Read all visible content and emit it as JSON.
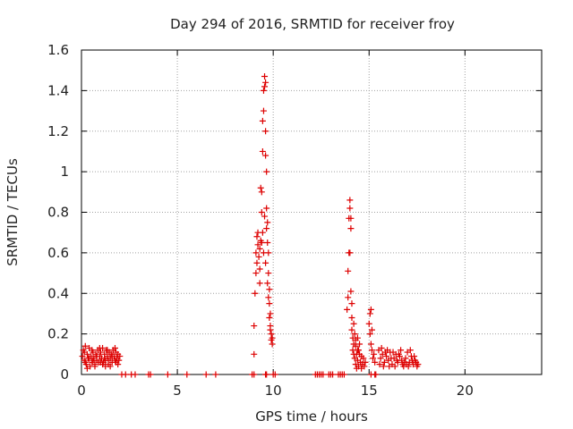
{
  "chart_data": {
    "type": "scatter",
    "title": "Day 294 of 2016, SRMTID for receiver froy",
    "xlabel": "GPS time / hours",
    "ylabel": "SRMTID / TECUs",
    "xlim": [
      0,
      24
    ],
    "ylim": [
      0,
      1.6
    ],
    "x_ticks": [
      0,
      5,
      10,
      15,
      20
    ],
    "x_tick_labels": [
      "0",
      "5",
      "10",
      "15",
      "20"
    ],
    "y_ticks": [
      0,
      0.2,
      0.4,
      0.6,
      0.8,
      1.0,
      1.2,
      1.4,
      1.6
    ],
    "y_tick_labels": [
      "0",
      "0.2",
      "0.4",
      "0.6",
      "0.8",
      "1",
      "1.2",
      "1.4",
      "1.6"
    ],
    "grid": true,
    "marker": "+",
    "color": "#dd0000",
    "series": [
      {
        "name": "SRMTID",
        "points": [
          [
            0.05,
            0.09
          ],
          [
            0.1,
            0.12
          ],
          [
            0.15,
            0.07
          ],
          [
            0.2,
            0.14
          ],
          [
            0.25,
            0.05
          ],
          [
            0.3,
            0.1
          ],
          [
            0.35,
            0.08
          ],
          [
            0.4,
            0.13
          ],
          [
            0.45,
            0.04
          ],
          [
            0.5,
            0.09
          ],
          [
            0.55,
            0.06
          ],
          [
            0.6,
            0.11
          ],
          [
            0.65,
            0.08
          ],
          [
            0.7,
            0.05
          ],
          [
            0.75,
            0.1
          ],
          [
            0.8,
            0.07
          ],
          [
            0.85,
            0.12
          ],
          [
            0.9,
            0.06
          ],
          [
            0.95,
            0.09
          ],
          [
            1.0,
            0.11
          ],
          [
            1.05,
            0.08
          ],
          [
            1.1,
            0.13
          ],
          [
            1.15,
            0.06
          ],
          [
            1.2,
            0.1
          ],
          [
            1.25,
            0.07
          ],
          [
            1.3,
            0.12
          ],
          [
            1.35,
            0.09
          ],
          [
            1.4,
            0.05
          ],
          [
            1.45,
            0.11
          ],
          [
            1.5,
            0.08
          ],
          [
            1.55,
            0.1
          ],
          [
            1.6,
            0.06
          ],
          [
            1.65,
            0.12
          ],
          [
            1.7,
            0.09
          ],
          [
            1.75,
            0.07
          ],
          [
            1.8,
            0.11
          ],
          [
            1.85,
            0.08
          ],
          [
            1.9,
            0.1
          ],
          [
            1.95,
            0.07
          ],
          [
            2.0,
            0.09
          ],
          [
            0.2,
            0.06
          ],
          [
            0.4,
            0.08
          ],
          [
            0.6,
            0.07
          ],
          [
            0.8,
            0.09
          ],
          [
            1.0,
            0.06
          ],
          [
            1.2,
            0.08
          ],
          [
            1.4,
            0.07
          ],
          [
            1.6,
            0.09
          ],
          [
            1.8,
            0.06
          ],
          [
            0.3,
            0.03
          ],
          [
            0.7,
            0.04
          ],
          [
            1.1,
            0.05
          ],
          [
            1.5,
            0.04
          ],
          [
            1.9,
            0.05
          ],
          [
            0.15,
            0.11
          ],
          [
            0.55,
            0.12
          ],
          [
            0.95,
            0.13
          ],
          [
            1.35,
            0.12
          ],
          [
            1.75,
            0.13
          ],
          [
            1.25,
            0.04
          ],
          [
            2.1,
            0.0
          ],
          [
            2.3,
            0.0
          ],
          [
            2.6,
            0.0
          ],
          [
            2.8,
            0.0
          ],
          [
            3.5,
            0.0
          ],
          [
            3.6,
            0.0
          ],
          [
            4.5,
            0.0
          ],
          [
            5.5,
            0.0
          ],
          [
            6.5,
            0.0
          ],
          [
            7.0,
            0.0
          ],
          [
            8.9,
            0.0
          ],
          [
            9.0,
            0.0
          ],
          [
            9.6,
            0.0
          ],
          [
            9.65,
            0.0
          ],
          [
            10.0,
            0.0
          ],
          [
            10.1,
            0.0
          ],
          [
            12.2,
            0.0
          ],
          [
            12.3,
            0.0
          ],
          [
            12.4,
            0.0
          ],
          [
            12.5,
            0.0
          ],
          [
            12.6,
            0.0
          ],
          [
            12.9,
            0.0
          ],
          [
            13.0,
            0.0
          ],
          [
            13.1,
            0.0
          ],
          [
            13.4,
            0.0
          ],
          [
            13.5,
            0.0
          ],
          [
            13.6,
            0.0
          ],
          [
            13.7,
            0.0
          ],
          [
            15.1,
            0.0
          ],
          [
            15.3,
            0.0
          ],
          [
            15.35,
            0.0
          ],
          [
            9.0,
            0.1
          ],
          [
            9.0,
            0.24
          ],
          [
            9.05,
            0.4
          ],
          [
            9.1,
            0.5
          ],
          [
            9.1,
            0.6
          ],
          [
            9.15,
            0.55
          ],
          [
            9.15,
            0.68
          ],
          [
            9.2,
            0.64
          ],
          [
            9.2,
            0.7
          ],
          [
            9.25,
            0.58
          ],
          [
            9.3,
            0.62
          ],
          [
            9.3,
            0.52
          ],
          [
            9.35,
            0.66
          ],
          [
            9.35,
            0.92
          ],
          [
            9.4,
            0.8
          ],
          [
            9.4,
            0.9
          ],
          [
            9.45,
            1.1
          ],
          [
            9.45,
            1.25
          ],
          [
            9.5,
            1.3
          ],
          [
            9.5,
            1.4
          ],
          [
            9.55,
            1.42
          ],
          [
            9.55,
            1.47
          ],
          [
            9.6,
            1.44
          ],
          [
            9.6,
            1.2
          ],
          [
            9.65,
            1.0
          ],
          [
            9.65,
            0.82
          ],
          [
            9.7,
            0.75
          ],
          [
            9.7,
            0.65
          ],
          [
            9.75,
            0.6
          ],
          [
            9.75,
            0.5
          ],
          [
            9.8,
            0.42
          ],
          [
            9.8,
            0.35
          ],
          [
            9.85,
            0.3
          ],
          [
            9.85,
            0.24
          ],
          [
            9.9,
            0.2
          ],
          [
            9.9,
            0.17
          ],
          [
            9.95,
            0.15
          ],
          [
            9.95,
            0.18
          ],
          [
            9.4,
            0.65
          ],
          [
            9.5,
            0.6
          ],
          [
            9.6,
            0.55
          ],
          [
            9.45,
            0.7
          ],
          [
            9.55,
            0.78
          ],
          [
            9.6,
            1.08
          ],
          [
            9.65,
            0.72
          ],
          [
            9.7,
            0.45
          ],
          [
            9.75,
            0.38
          ],
          [
            9.8,
            0.28
          ],
          [
            9.85,
            0.22
          ],
          [
            9.3,
            0.45
          ],
          [
            13.85,
            0.32
          ],
          [
            13.9,
            0.38
          ],
          [
            13.9,
            0.51
          ],
          [
            13.95,
            0.6
          ],
          [
            13.95,
            0.77
          ],
          [
            14.0,
            0.82
          ],
          [
            14.0,
            0.86
          ],
          [
            14.05,
            0.72
          ],
          [
            14.05,
            0.41
          ],
          [
            14.1,
            0.28
          ],
          [
            14.1,
            0.22
          ],
          [
            14.15,
            0.18
          ],
          [
            14.15,
            0.12
          ],
          [
            14.2,
            0.25
          ],
          [
            14.2,
            0.15
          ],
          [
            14.25,
            0.08
          ],
          [
            14.25,
            0.2
          ],
          [
            14.3,
            0.05
          ],
          [
            14.3,
            0.14
          ],
          [
            14.35,
            0.1
          ],
          [
            14.35,
            0.03
          ],
          [
            14.4,
            0.18
          ],
          [
            14.4,
            0.07
          ],
          [
            14.45,
            0.12
          ],
          [
            14.45,
            0.04
          ],
          [
            14.5,
            0.1
          ],
          [
            14.5,
            0.15
          ],
          [
            14.55,
            0.06
          ],
          [
            14.6,
            0.09
          ],
          [
            14.65,
            0.05
          ],
          [
            14.7,
            0.08
          ],
          [
            14.75,
            0.04
          ],
          [
            14.8,
            0.06
          ],
          [
            15.0,
            0.25
          ],
          [
            15.05,
            0.3
          ],
          [
            15.05,
            0.2
          ],
          [
            15.1,
            0.32
          ],
          [
            15.1,
            0.15
          ],
          [
            15.15,
            0.12
          ],
          [
            15.15,
            0.22
          ],
          [
            15.2,
            0.08
          ],
          [
            15.25,
            0.1
          ],
          [
            15.3,
            0.06
          ],
          [
            14.05,
            0.77
          ],
          [
            14.0,
            0.6
          ],
          [
            14.1,
            0.35
          ],
          [
            14.2,
            0.1
          ],
          [
            14.3,
            0.17
          ],
          [
            14.4,
            0.12
          ],
          [
            14.6,
            0.03
          ],
          [
            15.5,
            0.12
          ],
          [
            15.6,
            0.08
          ],
          [
            15.7,
            0.1
          ],
          [
            15.8,
            0.06
          ],
          [
            15.9,
            0.09
          ],
          [
            16.0,
            0.07
          ],
          [
            16.1,
            0.11
          ],
          [
            16.2,
            0.05
          ],
          [
            16.3,
            0.08
          ],
          [
            16.4,
            0.1
          ],
          [
            16.5,
            0.06
          ],
          [
            16.6,
            0.09
          ],
          [
            16.7,
            0.07
          ],
          [
            16.8,
            0.04
          ],
          [
            16.9,
            0.08
          ],
          [
            17.0,
            0.11
          ],
          [
            17.1,
            0.06
          ],
          [
            17.2,
            0.09
          ],
          [
            17.3,
            0.05
          ],
          [
            17.4,
            0.07
          ],
          [
            17.5,
            0.04
          ],
          [
            15.55,
            0.05
          ],
          [
            15.75,
            0.04
          ],
          [
            15.95,
            0.12
          ],
          [
            16.15,
            0.08
          ],
          [
            16.35,
            0.04
          ],
          [
            16.55,
            0.1
          ],
          [
            16.75,
            0.05
          ],
          [
            16.95,
            0.05
          ],
          [
            17.15,
            0.12
          ],
          [
            17.35,
            0.09
          ],
          [
            17.55,
            0.05
          ],
          [
            15.65,
            0.13
          ],
          [
            15.85,
            0.11
          ],
          [
            16.05,
            0.04
          ],
          [
            16.25,
            0.11
          ],
          [
            16.45,
            0.07
          ],
          [
            16.65,
            0.12
          ],
          [
            16.85,
            0.06
          ],
          [
            17.05,
            0.04
          ],
          [
            17.25,
            0.07
          ],
          [
            17.45,
            0.06
          ]
        ]
      }
    ]
  }
}
